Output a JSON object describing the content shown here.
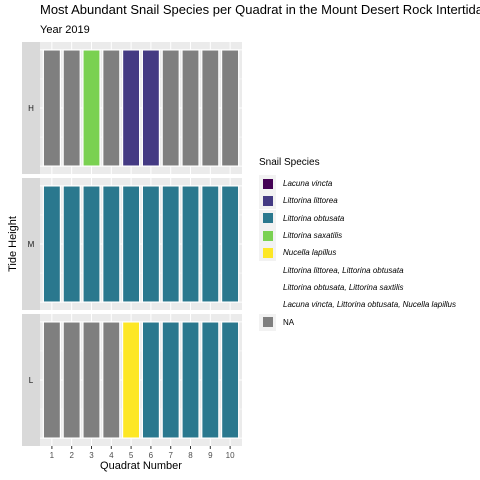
{
  "chart_data": {
    "type": "bar",
    "title": "Most Abundant Snail Species per Quadrat in the Mount Desert Rock Intertidal",
    "subtitle": "Year 2019",
    "xlabel": "Quadrat Number",
    "ylabel": "Tide Height",
    "legend_title": "Snail Species",
    "legend_position": "right",
    "grid": true,
    "facets": [
      "H",
      "M",
      "L"
    ],
    "x_categories": [
      "1",
      "2",
      "3",
      "4",
      "5",
      "6",
      "7",
      "8",
      "9",
      "10"
    ],
    "species": [
      {
        "name": "Lacuna vincta",
        "color": "#440154",
        "italic": true
      },
      {
        "name": "Littorina littorea",
        "color": "#443a83",
        "italic": true
      },
      {
        "name": "Littorina obtusata",
        "color": "#2a788e",
        "italic": true
      },
      {
        "name": "Littorina saxatilis",
        "color": "#7ad151",
        "italic": true
      },
      {
        "name": "Nucella lapillus",
        "color": "#fde725",
        "italic": true
      },
      {
        "name": "Littorina littorea, Littorina obtusata",
        "color": null,
        "italic": true
      },
      {
        "name": "Littorina obtusata, Littorina saxtilis",
        "color": null,
        "italic": true
      },
      {
        "name": "Lacuna vincta, Littorina obtusata, Nucella lapillus",
        "color": null,
        "italic": true
      },
      {
        "name": "NA",
        "color": "#7f7f7f",
        "italic": false
      }
    ],
    "values": {
      "H": [
        "NA",
        "NA",
        "Littorina saxatilis",
        "NA",
        "Littorina littorea",
        "Littorina littorea",
        "NA",
        "NA",
        "NA",
        "NA"
      ],
      "M": [
        "Littorina obtusata",
        "Littorina obtusata",
        "Littorina obtusata",
        "Littorina obtusata",
        "Littorina obtusata",
        "Littorina obtusata",
        "Littorina obtusata",
        "Littorina obtusata",
        "Littorina obtusata",
        "Littorina obtusata"
      ],
      "L": [
        "NA",
        "NA",
        "NA",
        "NA",
        "Nucella lapillus",
        "Littorina obtusata",
        "Littorina obtusata",
        "Littorina obtusata",
        "Littorina obtusata",
        "Littorina obtusata"
      ]
    },
    "bar_value": 1
  }
}
